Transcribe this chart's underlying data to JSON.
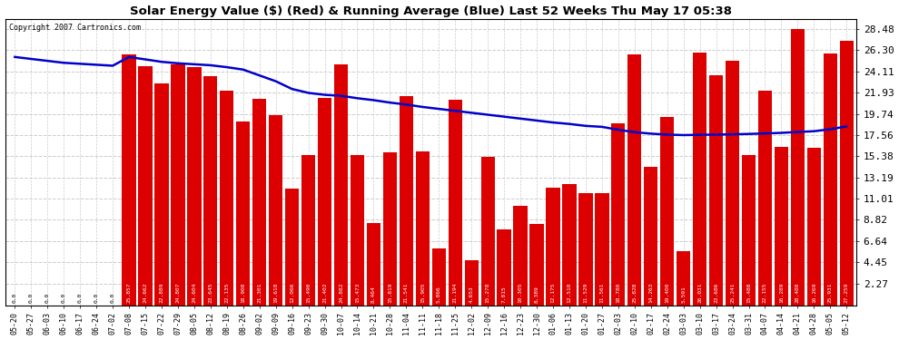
{
  "title": "Solar Energy Value ($) (Red) & Running Average (Blue) Last 52 Weeks Thu May 17 05:38",
  "copyright": "Copyright 2007 Cartronics.com",
  "bar_color": "#dd0000",
  "line_color": "#0000cc",
  "bg_color": "#ffffff",
  "plot_bg_color": "#ffffff",
  "grid_color": "#cccccc",
  "yticks": [
    2.27,
    4.45,
    6.64,
    8.82,
    11.01,
    13.19,
    15.38,
    17.56,
    19.74,
    21.93,
    24.11,
    26.3,
    28.48
  ],
  "xlabels": [
    "05-20",
    "05-27",
    "06-03",
    "06-10",
    "06-17",
    "06-24",
    "07-02",
    "07-08",
    "07-15",
    "07-22",
    "07-29",
    "08-05",
    "08-12",
    "08-19",
    "08-26",
    "09-02",
    "09-09",
    "09-16",
    "09-23",
    "09-30",
    "10-07",
    "10-14",
    "10-21",
    "10-28",
    "11-04",
    "11-11",
    "11-18",
    "11-25",
    "12-02",
    "12-09",
    "12-16",
    "12-23",
    "12-30",
    "01-06",
    "01-13",
    "01-20",
    "01-27",
    "02-03",
    "02-10",
    "02-17",
    "02-24",
    "03-03",
    "03-10",
    "03-17",
    "03-24",
    "03-31",
    "04-07",
    "04-14",
    "04-21",
    "04-28",
    "05-05",
    "05-12"
  ],
  "bar_values": [
    0.0,
    0.0,
    0.0,
    0.0,
    0.0,
    0.0,
    0.0,
    25.857,
    24.662,
    22.889,
    24.807,
    24.604,
    23.645,
    22.135,
    18.908,
    21.301,
    19.618,
    12.066,
    15.49,
    21.402,
    24.882,
    15.473,
    8.464,
    15.819,
    21.541,
    15.905,
    5.866,
    21.194,
    4.653,
    15.278,
    7.815,
    10.305,
    8.389,
    12.175,
    12.51,
    11.529,
    11.561,
    18.78,
    25.828,
    14.263,
    19.4,
    5.591,
    26.031,
    23.686,
    25.241,
    15.488,
    22.155,
    16.289,
    28.48,
    16.269,
    25.931,
    27.259
  ],
  "running_avg": [
    25.6,
    25.4,
    25.2,
    25.0,
    24.9,
    24.8,
    24.7,
    25.6,
    25.35,
    25.1,
    24.95,
    24.85,
    24.75,
    24.55,
    24.3,
    23.7,
    23.1,
    22.3,
    21.9,
    21.7,
    21.6,
    21.35,
    21.15,
    20.9,
    20.7,
    20.45,
    20.25,
    20.05,
    19.85,
    19.65,
    19.45,
    19.25,
    19.05,
    18.85,
    18.7,
    18.5,
    18.4,
    18.1,
    17.85,
    17.7,
    17.6,
    17.55,
    17.58,
    17.6,
    17.63,
    17.67,
    17.72,
    17.78,
    17.87,
    17.95,
    18.15,
    18.45
  ],
  "ylim_max": 29.5
}
